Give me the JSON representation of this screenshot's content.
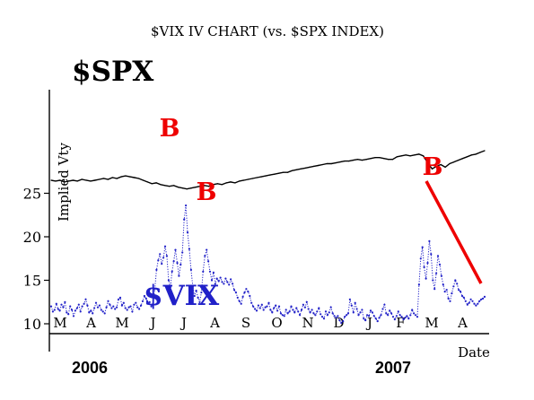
{
  "chart_data": {
    "type": "line",
    "title": "$VIX IV CHART (vs. $SPX INDEX)",
    "ylabel": "Implied Vty",
    "xlabel": "Date",
    "ylim": [
      9.4,
      30.5
    ],
    "y_ticks": [
      10,
      15,
      20,
      25
    ],
    "x_month_labels": [
      "M",
      "A",
      "M",
      "J",
      "J",
      "A",
      "S",
      "O",
      "N",
      "D",
      "J",
      "F",
      "M",
      "A"
    ],
    "years": [
      "2006",
      "2007"
    ],
    "series": [
      {
        "name": "$VIX",
        "color": "#2020c8",
        "values": [
          12.0,
          11.4,
          11.6,
          12.3,
          11.7,
          11.5,
          12.2,
          11.9,
          12.5,
          11.3,
          11.1,
          12.0,
          11.6,
          10.9,
          11.5,
          11.8,
          12.2,
          11.4,
          12.0,
          12.3,
          12.8,
          12.1,
          11.3,
          11.5,
          11.2,
          11.8,
          12.4,
          11.9,
          12.1,
          11.6,
          11.4,
          11.2,
          11.9,
          12.6,
          12.2,
          11.8,
          12.0,
          11.7,
          11.9,
          12.8,
          13.0,
          12.1,
          12.4,
          11.8,
          11.6,
          11.9,
          12.0,
          11.4,
          12.2,
          12.4,
          11.9,
          11.7,
          12.1,
          12.6,
          13.2,
          12.9,
          12.3,
          12.5,
          12.0,
          12.3,
          14.0,
          16.2,
          17.3,
          18.0,
          16.9,
          17.6,
          18.9,
          17.8,
          15.0,
          14.2,
          16.0,
          17.2,
          18.5,
          17.0,
          15.5,
          16.8,
          18.2,
          22.0,
          23.6,
          20.5,
          18.6,
          16.2,
          14.3,
          13.2,
          13.8,
          13.0,
          12.5,
          13.6,
          16.0,
          17.8,
          18.5,
          17.2,
          16.0,
          15.0,
          15.9,
          14.6,
          15.2,
          14.9,
          15.3,
          14.8,
          14.6,
          15.2,
          14.8,
          14.5,
          15.1,
          14.6,
          13.9,
          13.6,
          13.0,
          12.6,
          12.3,
          13.1,
          13.6,
          14.0,
          13.7,
          13.2,
          12.4,
          12.0,
          11.7,
          11.5,
          12.1,
          11.8,
          12.2,
          11.6,
          11.9,
          12.0,
          12.4,
          11.6,
          11.3,
          11.8,
          12.1,
          11.5,
          12.0,
          11.2,
          11.0,
          10.9,
          11.6,
          11.2,
          11.4,
          12.0,
          11.6,
          11.3,
          11.8,
          11.4,
          11.0,
          11.6,
          12.2,
          11.9,
          12.5,
          11.7,
          11.3,
          11.6,
          11.2,
          11.0,
          11.4,
          11.8,
          11.1,
          10.8,
          10.6,
          11.4,
          11.0,
          11.3,
          11.9,
          11.2,
          10.9,
          10.7,
          10.9,
          10.4,
          10.1,
          10.3,
          10.8,
          11.0,
          11.2,
          12.8,
          12.1,
          11.3,
          12.4,
          11.7,
          11.0,
          11.3,
          11.6,
          10.6,
          10.4,
          11.0,
          10.9,
          11.5,
          11.3,
          10.9,
          10.6,
          10.3,
          10.7,
          11.0,
          11.7,
          12.2,
          11.2,
          11.0,
          11.5,
          11.2,
          10.8,
          10.5,
          10.9,
          11.4,
          11.0,
          10.8,
          10.5,
          10.7,
          10.9,
          10.6,
          11.0,
          11.6,
          11.2,
          11.0,
          10.8,
          14.5,
          17.5,
          18.8,
          16.5,
          15.2,
          17.0,
          19.5,
          18.0,
          15.0,
          14.0,
          15.8,
          17.8,
          16.8,
          15.5,
          14.5,
          13.7,
          13.9,
          12.9,
          12.6,
          13.5,
          14.3,
          15.0,
          14.6,
          13.9,
          13.7,
          13.2,
          13.0,
          12.6,
          12.2,
          12.4,
          12.8,
          12.6,
          12.3,
          12.1,
          12.3,
          12.6,
          12.8,
          12.9,
          13.1
        ]
      },
      {
        "name": "$SPX",
        "color": "#000000",
        "values": [
          26.5,
          26.4,
          26.5,
          26.3,
          26.4,
          26.5,
          26.4,
          26.6,
          26.5,
          26.4,
          26.5,
          26.6,
          26.7,
          26.6,
          26.8,
          26.7,
          26.9,
          27.0,
          26.9,
          26.8,
          26.7,
          26.5,
          26.3,
          26.1,
          26.2,
          26.0,
          25.9,
          25.8,
          25.9,
          25.7,
          25.6,
          25.5,
          25.6,
          25.7,
          25.8,
          25.9,
          25.8,
          26.0,
          26.1,
          26.0,
          26.2,
          26.3,
          26.2,
          26.4,
          26.5,
          26.6,
          26.7,
          26.8,
          26.9,
          27.0,
          27.1,
          27.2,
          27.3,
          27.4,
          27.4,
          27.6,
          27.7,
          27.8,
          27.9,
          28.0,
          28.1,
          28.2,
          28.3,
          28.4,
          28.4,
          28.5,
          28.6,
          28.7,
          28.7,
          28.8,
          28.9,
          28.8,
          28.9,
          29.0,
          29.1,
          29.1,
          29.0,
          28.9,
          28.9,
          29.2,
          29.3,
          29.4,
          29.3,
          29.4,
          29.5,
          29.3,
          28.5,
          27.8,
          28.1,
          28.3,
          28.0,
          28.4,
          28.6,
          28.8,
          29.0,
          29.2,
          29.4,
          29.5,
          29.7,
          29.9
        ]
      }
    ],
    "annotations": {
      "series_labels": [
        "$SPX",
        "$VIX"
      ],
      "buy_marks": [
        "B",
        "B",
        "B"
      ]
    }
  }
}
